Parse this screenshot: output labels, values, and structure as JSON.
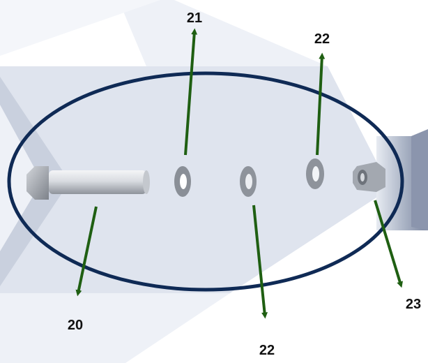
{
  "callouts": {
    "bolt": "20",
    "lock_washer": "21",
    "flat_washer_top": "22",
    "flat_washer_bottom": "22",
    "nut": "23"
  },
  "colors": {
    "arrow": "#1f5f12",
    "ellipse": "#0f2a55",
    "band_light": "#eef1f7",
    "band_mid": "#dfe4ee",
    "band_dark": "#c9d0de",
    "metal": "#b9bcc2"
  }
}
